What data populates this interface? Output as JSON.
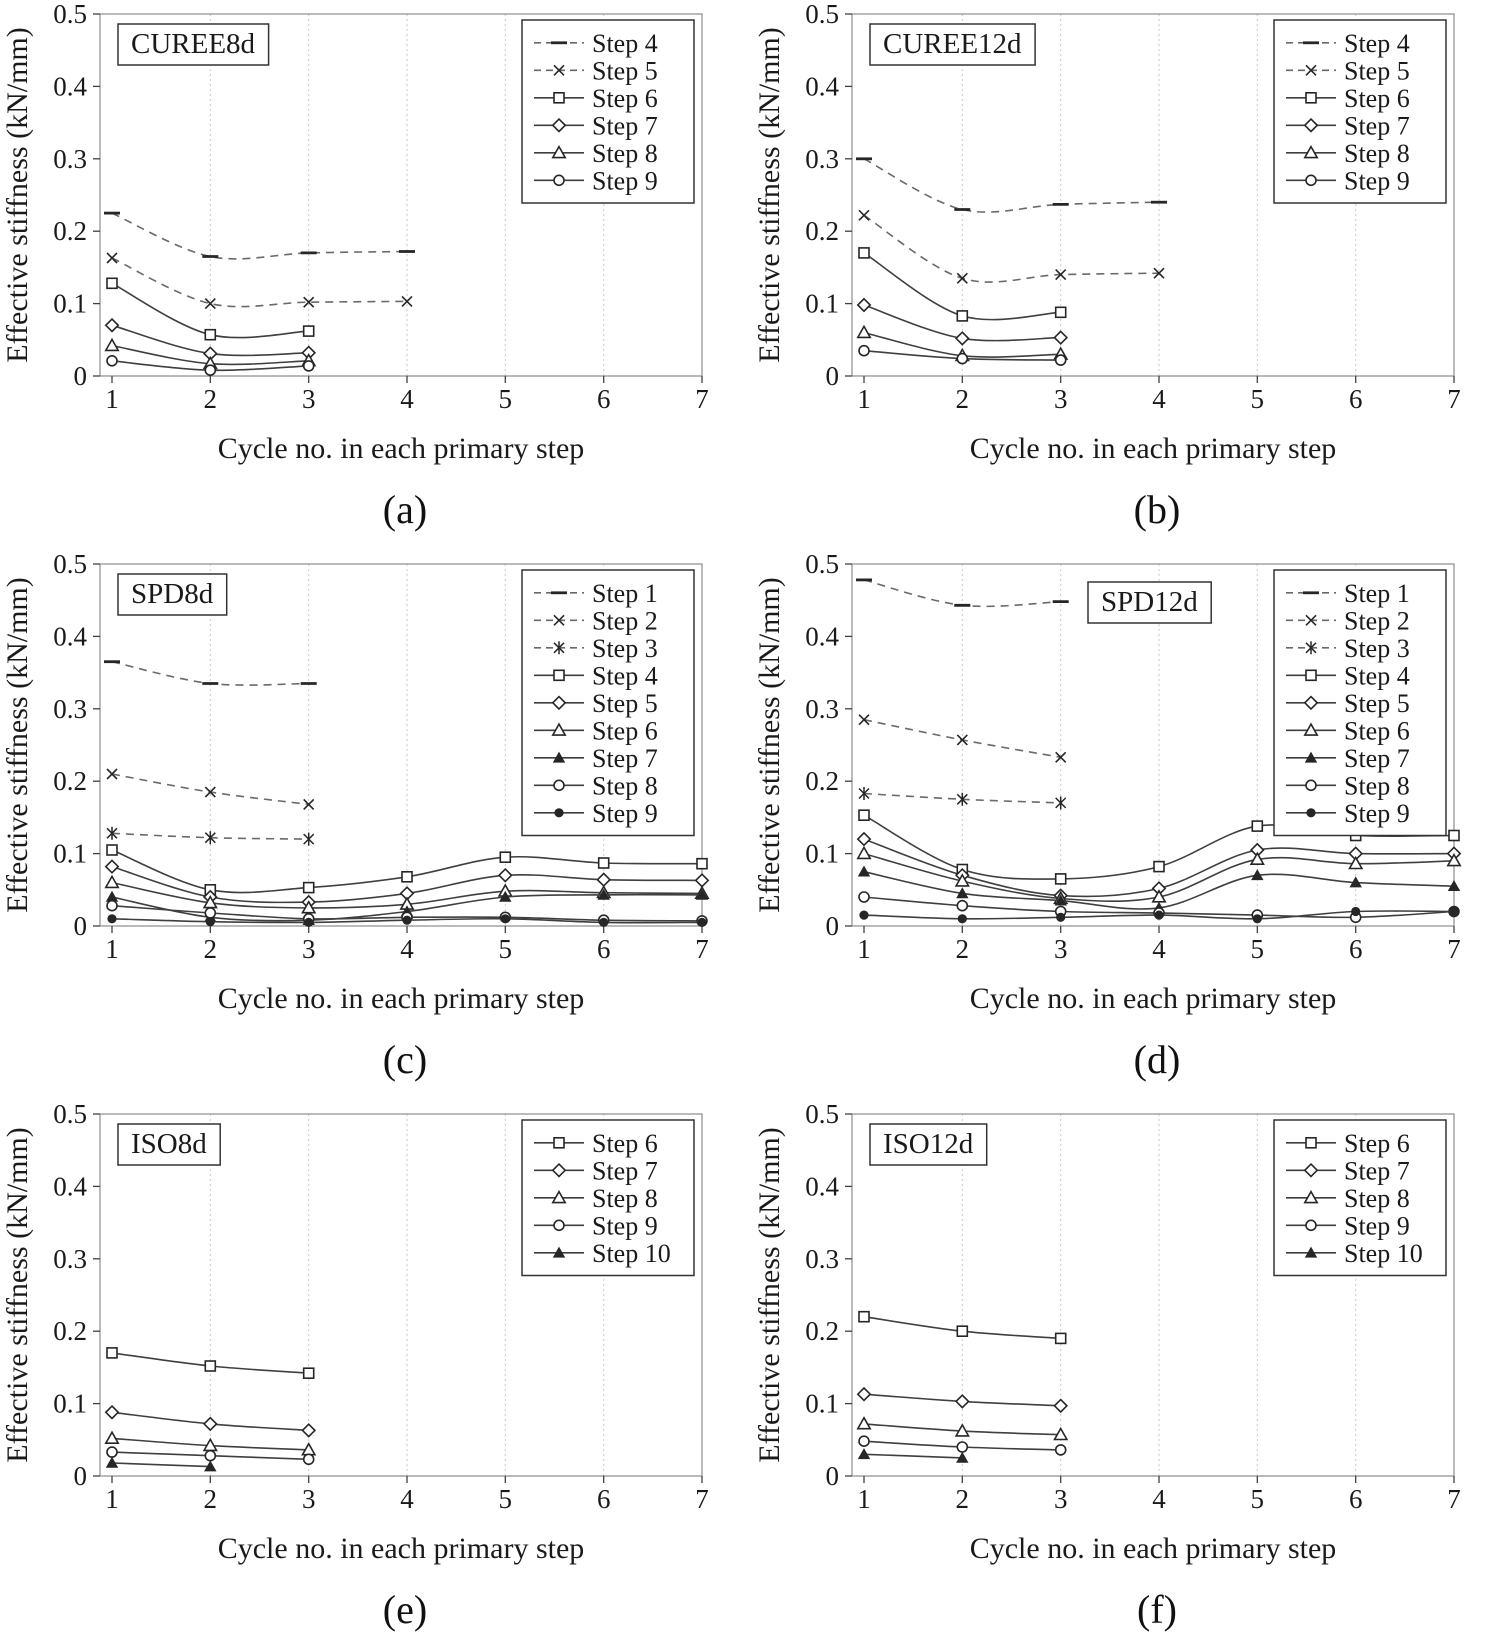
{
  "figure": {
    "xlabel": "Cycle no. in each primary step",
    "ylabel": "Effective stiffness (kN/mm)",
    "colors": {
      "line_solid": "#3f3f3f",
      "line_dashed": "#6a6a6a",
      "marker": "#262626",
      "grid": "#c9c9c9",
      "border": "#8c8c8c",
      "axis": "#404040",
      "text": "#1a1a1a"
    },
    "axis": {
      "xlim": [
        1,
        7
      ],
      "xticks": [
        1,
        2,
        3,
        4,
        5,
        6,
        7
      ],
      "ylim": [
        0,
        0.5
      ],
      "yticks": [
        0,
        0.1,
        0.2,
        0.3,
        0.4,
        0.5
      ],
      "ytick_labels": [
        "0",
        "0.1",
        "0.2",
        "0.3",
        "0.4",
        "0.5"
      ],
      "grid": "vertical-only",
      "legend_position": "top-right"
    }
  },
  "chart_data": [
    {
      "type": "line",
      "title": "CUREE8d",
      "title_pos": "left",
      "caption": "(a)",
      "series": [
        {
          "name": "Step 4",
          "marker": "dash",
          "line": "dashed",
          "x": [
            1,
            2,
            3,
            4
          ],
          "y": [
            0.225,
            0.165,
            0.17,
            0.172
          ]
        },
        {
          "name": "Step 5",
          "marker": "x",
          "line": "dashed",
          "x": [
            1,
            2,
            3,
            4
          ],
          "y": [
            0.163,
            0.1,
            0.102,
            0.103
          ]
        },
        {
          "name": "Step 6",
          "marker": "square",
          "line": "solid",
          "x": [
            1,
            2,
            3
          ],
          "y": [
            0.128,
            0.057,
            0.062
          ]
        },
        {
          "name": "Step 7",
          "marker": "diamond",
          "line": "solid",
          "x": [
            1,
            2,
            3
          ],
          "y": [
            0.07,
            0.031,
            0.032
          ]
        },
        {
          "name": "Step 8",
          "marker": "triangle",
          "line": "solid",
          "x": [
            1,
            2,
            3
          ],
          "y": [
            0.042,
            0.017,
            0.021
          ]
        },
        {
          "name": "Step 9",
          "marker": "circle",
          "line": "solid",
          "x": [
            1,
            2,
            3
          ],
          "y": [
            0.021,
            0.008,
            0.014
          ]
        }
      ]
    },
    {
      "type": "line",
      "title": "CUREE12d",
      "title_pos": "left",
      "caption": "(b)",
      "series": [
        {
          "name": "Step 4",
          "marker": "dash",
          "line": "dashed",
          "x": [
            1,
            2,
            3,
            4
          ],
          "y": [
            0.3,
            0.23,
            0.237,
            0.24
          ]
        },
        {
          "name": "Step 5",
          "marker": "x",
          "line": "dashed",
          "x": [
            1,
            2,
            3,
            4
          ],
          "y": [
            0.222,
            0.135,
            0.14,
            0.142
          ]
        },
        {
          "name": "Step 6",
          "marker": "square",
          "line": "solid",
          "x": [
            1,
            2,
            3
          ],
          "y": [
            0.17,
            0.083,
            0.088
          ]
        },
        {
          "name": "Step 7",
          "marker": "diamond",
          "line": "solid",
          "x": [
            1,
            2,
            3
          ],
          "y": [
            0.098,
            0.052,
            0.053
          ]
        },
        {
          "name": "Step 8",
          "marker": "triangle",
          "line": "solid",
          "x": [
            1,
            2,
            3
          ],
          "y": [
            0.06,
            0.028,
            0.03
          ]
        },
        {
          "name": "Step 9",
          "marker": "circle",
          "line": "solid",
          "x": [
            1,
            2,
            3
          ],
          "y": [
            0.035,
            0.024,
            0.022
          ]
        }
      ]
    },
    {
      "type": "line",
      "title": "SPD8d",
      "title_pos": "left",
      "caption": "(c)",
      "series": [
        {
          "name": "Step 1",
          "marker": "dash",
          "line": "dashed",
          "x": [
            1,
            2,
            3
          ],
          "y": [
            0.365,
            0.335,
            0.335
          ]
        },
        {
          "name": "Step 2",
          "marker": "x",
          "line": "dashed",
          "x": [
            1,
            2,
            3
          ],
          "y": [
            0.21,
            0.185,
            0.168
          ]
        },
        {
          "name": "Step 3",
          "marker": "asterisk",
          "line": "dashed",
          "x": [
            1,
            2,
            3
          ],
          "y": [
            0.128,
            0.122,
            0.12
          ]
        },
        {
          "name": "Step 4",
          "marker": "square",
          "line": "solid",
          "x": [
            1,
            2,
            3,
            4,
            5,
            6,
            7
          ],
          "y": [
            0.105,
            0.05,
            0.053,
            0.068,
            0.095,
            0.087,
            0.086
          ]
        },
        {
          "name": "Step 5",
          "marker": "diamond",
          "line": "solid",
          "x": [
            1,
            2,
            3,
            4,
            5,
            6,
            7
          ],
          "y": [
            0.082,
            0.04,
            0.033,
            0.045,
            0.07,
            0.064,
            0.063
          ]
        },
        {
          "name": "Step 6",
          "marker": "triangle",
          "line": "solid",
          "x": [
            1,
            2,
            3,
            4,
            5,
            6,
            7
          ],
          "y": [
            0.06,
            0.032,
            0.025,
            0.03,
            0.048,
            0.046,
            0.045
          ]
        },
        {
          "name": "Step 7",
          "marker": "triangle-filled",
          "line": "solid",
          "x": [
            1,
            2,
            3,
            4,
            5,
            6,
            7
          ],
          "y": [
            0.04,
            0.012,
            0.008,
            0.02,
            0.04,
            0.043,
            0.043
          ]
        },
        {
          "name": "Step 8",
          "marker": "circle",
          "line": "solid",
          "x": [
            1,
            2,
            3,
            4,
            5,
            6,
            7
          ],
          "y": [
            0.028,
            0.018,
            0.01,
            0.012,
            0.012,
            0.008,
            0.007
          ]
        },
        {
          "name": "Step 9",
          "marker": "circle-filled",
          "line": "solid",
          "x": [
            1,
            2,
            3,
            4,
            5,
            6,
            7
          ],
          "y": [
            0.01,
            0.006,
            0.005,
            0.008,
            0.01,
            0.005,
            0.005
          ]
        }
      ]
    },
    {
      "type": "line",
      "title": "SPD12d",
      "title_pos": "mid",
      "caption": "(d)",
      "series": [
        {
          "name": "Step 1",
          "marker": "dash",
          "line": "dashed",
          "x": [
            1,
            2,
            3
          ],
          "y": [
            0.478,
            0.443,
            0.448
          ]
        },
        {
          "name": "Step 2",
          "marker": "x",
          "line": "dashed",
          "x": [
            1,
            2,
            3
          ],
          "y": [
            0.285,
            0.257,
            0.233
          ]
        },
        {
          "name": "Step 3",
          "marker": "asterisk",
          "line": "dashed",
          "x": [
            1,
            2,
            3
          ],
          "y": [
            0.183,
            0.175,
            0.17
          ]
        },
        {
          "name": "Step 4",
          "marker": "square",
          "line": "solid",
          "x": [
            1,
            2,
            3,
            4,
            5,
            6,
            7
          ],
          "y": [
            0.153,
            0.078,
            0.065,
            0.082,
            0.138,
            0.125,
            0.125
          ]
        },
        {
          "name": "Step 5",
          "marker": "diamond",
          "line": "solid",
          "x": [
            1,
            2,
            3,
            4,
            5,
            6,
            7
          ],
          "y": [
            0.12,
            0.07,
            0.042,
            0.052,
            0.105,
            0.1,
            0.1
          ]
        },
        {
          "name": "Step 6",
          "marker": "triangle",
          "line": "solid",
          "x": [
            1,
            2,
            3,
            4,
            5,
            6,
            7
          ],
          "y": [
            0.1,
            0.062,
            0.038,
            0.04,
            0.092,
            0.086,
            0.09
          ]
        },
        {
          "name": "Step 7",
          "marker": "triangle-filled",
          "line": "solid",
          "x": [
            1,
            2,
            3,
            4,
            5,
            6,
            7
          ],
          "y": [
            0.075,
            0.045,
            0.035,
            0.025,
            0.07,
            0.06,
            0.055
          ]
        },
        {
          "name": "Step 8",
          "marker": "circle",
          "line": "solid",
          "x": [
            1,
            2,
            3,
            4,
            5,
            6,
            7
          ],
          "y": [
            0.04,
            0.028,
            0.02,
            0.018,
            0.015,
            0.012,
            0.02
          ]
        },
        {
          "name": "Step 9",
          "marker": "circle-filled",
          "line": "solid",
          "x": [
            1,
            2,
            3,
            4,
            5,
            6,
            7
          ],
          "y": [
            0.015,
            0.01,
            0.012,
            0.015,
            0.01,
            0.02,
            0.02
          ]
        }
      ]
    },
    {
      "type": "line",
      "title": "ISO8d",
      "title_pos": "left",
      "caption": "(e)",
      "series": [
        {
          "name": "Step 6",
          "marker": "square",
          "line": "solid",
          "x": [
            1,
            2,
            3
          ],
          "y": [
            0.17,
            0.152,
            0.142
          ]
        },
        {
          "name": "Step 7",
          "marker": "diamond",
          "line": "solid",
          "x": [
            1,
            2,
            3
          ],
          "y": [
            0.088,
            0.072,
            0.063
          ]
        },
        {
          "name": "Step 8",
          "marker": "triangle",
          "line": "solid",
          "x": [
            1,
            2,
            3
          ],
          "y": [
            0.052,
            0.042,
            0.036
          ]
        },
        {
          "name": "Step 9",
          "marker": "circle",
          "line": "solid",
          "x": [
            1,
            2,
            3
          ],
          "y": [
            0.033,
            0.028,
            0.023
          ]
        },
        {
          "name": "Step 10",
          "marker": "triangle-filled",
          "line": "solid",
          "x": [
            1,
            2
          ],
          "y": [
            0.018,
            0.013
          ]
        }
      ]
    },
    {
      "type": "line",
      "title": "ISO12d",
      "title_pos": "left",
      "caption": "(f)",
      "series": [
        {
          "name": "Step 6",
          "marker": "square",
          "line": "solid",
          "x": [
            1,
            2,
            3
          ],
          "y": [
            0.22,
            0.2,
            0.19
          ]
        },
        {
          "name": "Step 7",
          "marker": "diamond",
          "line": "solid",
          "x": [
            1,
            2,
            3
          ],
          "y": [
            0.113,
            0.103,
            0.097
          ]
        },
        {
          "name": "Step 8",
          "marker": "triangle",
          "line": "solid",
          "x": [
            1,
            2,
            3
          ],
          "y": [
            0.072,
            0.062,
            0.057
          ]
        },
        {
          "name": "Step 9",
          "marker": "circle",
          "line": "solid",
          "x": [
            1,
            2,
            3
          ],
          "y": [
            0.048,
            0.04,
            0.036
          ]
        },
        {
          "name": "Step 10",
          "marker": "triangle-filled",
          "line": "solid",
          "x": [
            1,
            2
          ],
          "y": [
            0.03,
            0.025
          ]
        }
      ]
    }
  ]
}
